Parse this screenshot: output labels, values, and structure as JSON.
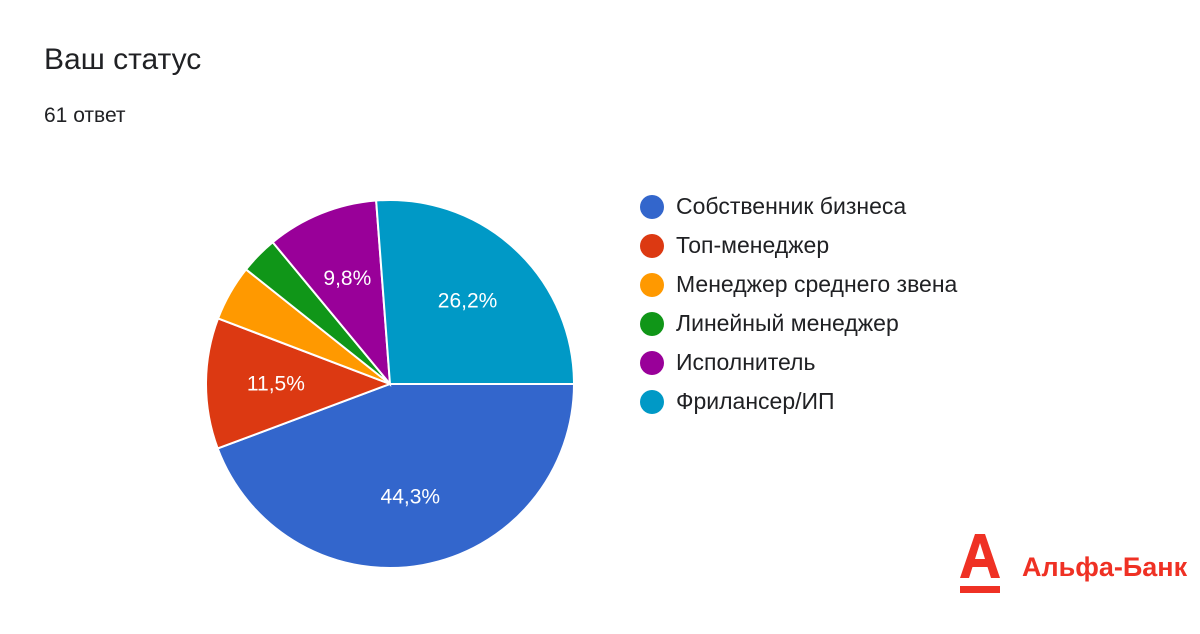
{
  "header": {
    "title": "Ваш статус",
    "responses": "61 ответ"
  },
  "chart_data": {
    "type": "pie",
    "title": "Ваш статус",
    "subtitle": "61 ответ",
    "legend_position": "right",
    "slices": [
      {
        "name": "Собственник бизнеса",
        "value": 44.3,
        "label": "44,3%",
        "color": "#3366cc"
      },
      {
        "name": "Топ-менеджер",
        "value": 11.5,
        "label": "11,5%",
        "color": "#dc3912"
      },
      {
        "name": "Менеджер среднего звена",
        "value": 4.9,
        "label": "",
        "color": "#ff9900"
      },
      {
        "name": "Линейный менеджер",
        "value": 3.3,
        "label": "",
        "color": "#109618"
      },
      {
        "name": "Исполнитель",
        "value": 9.8,
        "label": "9,8%",
        "color": "#990099"
      },
      {
        "name": "Фрилансер/ИП",
        "value": 26.2,
        "label": "26,2%",
        "color": "#0099c6"
      }
    ]
  },
  "logo": {
    "text": "Альфа-Банк",
    "color": "#ef3124"
  }
}
